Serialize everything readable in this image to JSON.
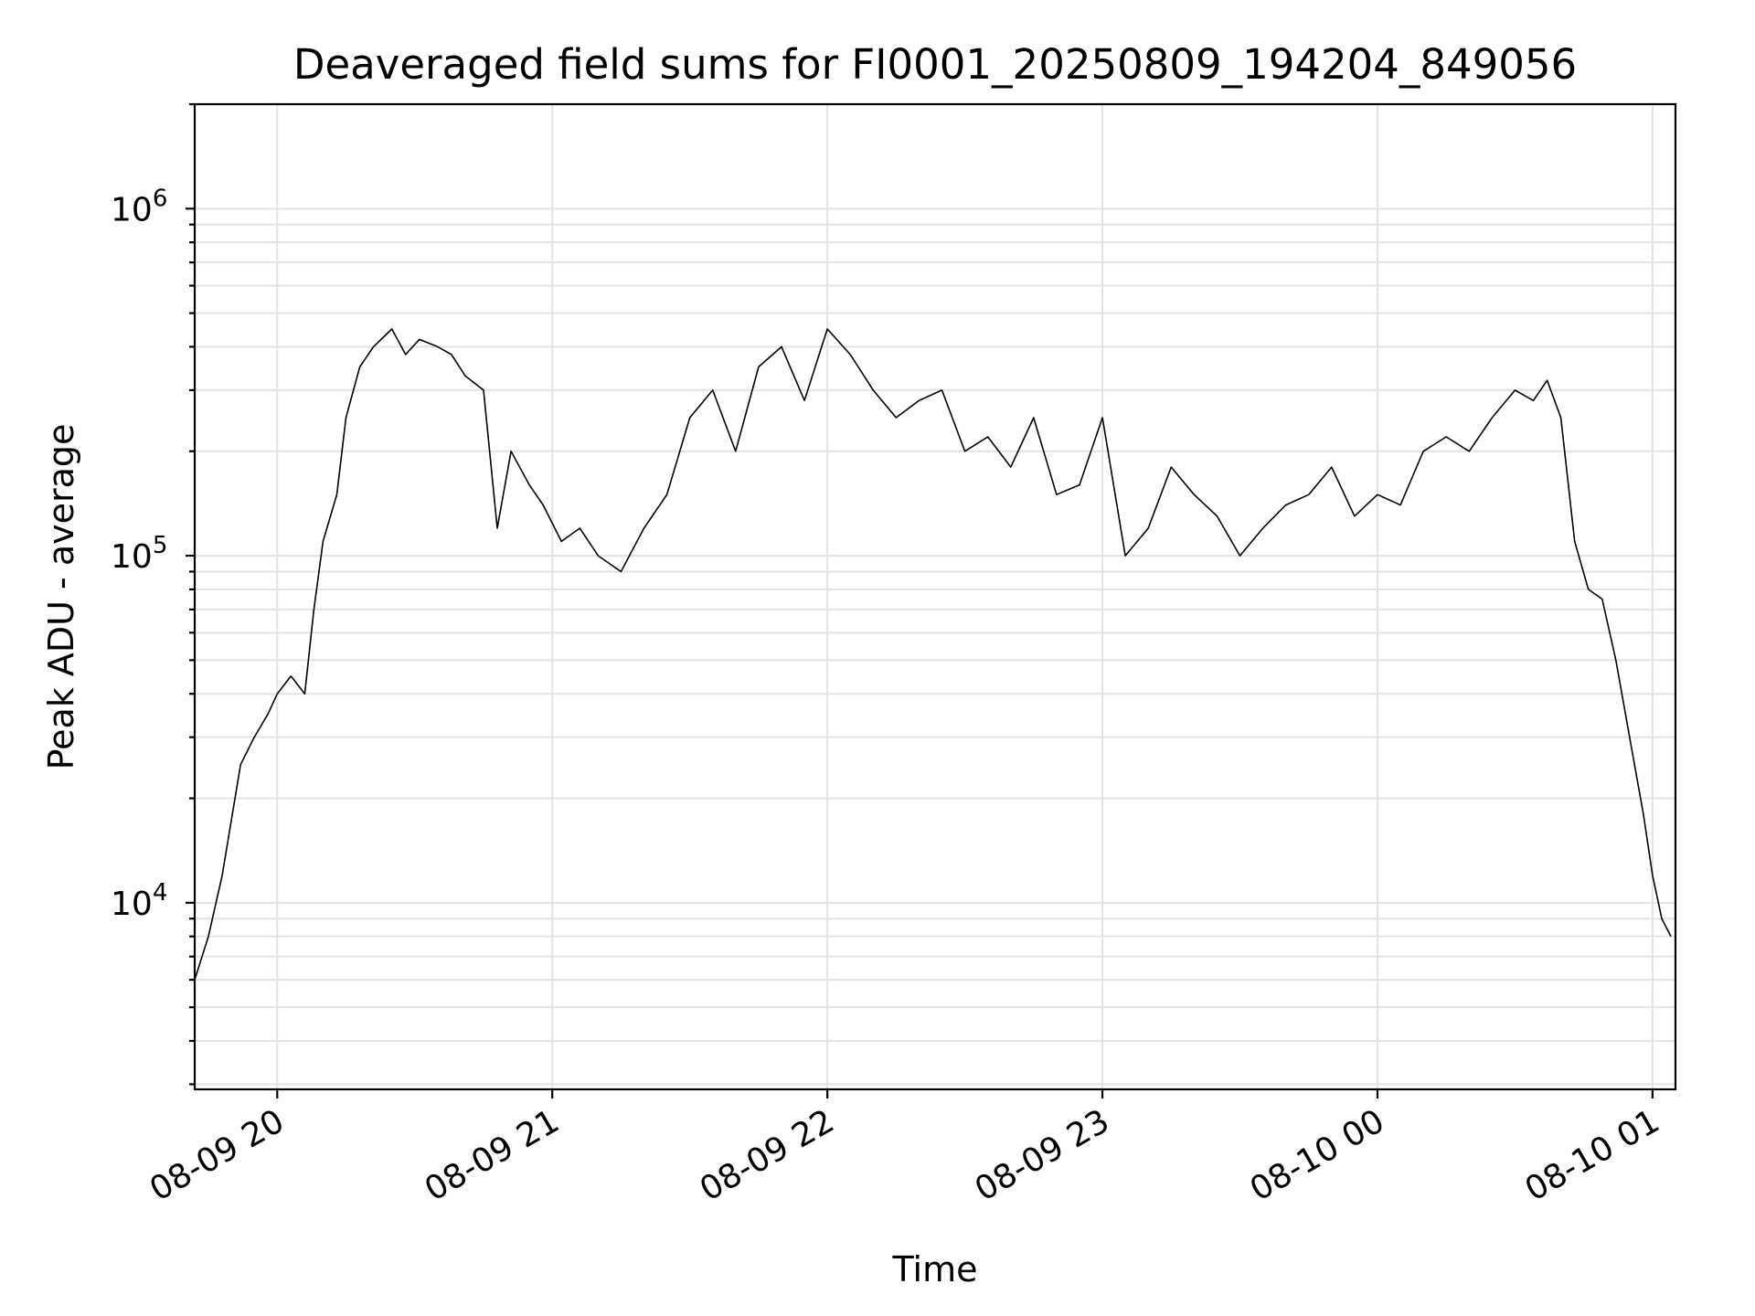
{
  "chart_data": {
    "type": "line",
    "title": "Deaveraged field sums for FI0001_20250809_194204_849056",
    "xlabel": "Time",
    "ylabel": "Peak ADU - average",
    "yscale": "log",
    "ylim": [
      2900,
      2000000
    ],
    "xlim": [
      "2025-08-09 19:42",
      "2025-08-10 01:05"
    ],
    "grid": true,
    "line_color": "#000000",
    "x_ticks": [
      {
        "t": "2025-08-09 20:00",
        "label": "08-09 20"
      },
      {
        "t": "2025-08-09 21:00",
        "label": "08-09 21"
      },
      {
        "t": "2025-08-09 22:00",
        "label": "08-09 22"
      },
      {
        "t": "2025-08-09 23:00",
        "label": "08-09 23"
      },
      {
        "t": "2025-08-10 00:00",
        "label": "08-10 00"
      },
      {
        "t": "2025-08-10 01:00",
        "label": "08-10 01"
      }
    ],
    "y_ticks": [
      {
        "value": 10000,
        "base": "10",
        "exp": "4"
      },
      {
        "value": 100000,
        "base": "10",
        "exp": "5"
      },
      {
        "value": 1000000,
        "base": "10",
        "exp": "6"
      }
    ],
    "series": [
      {
        "x": [
          "2025-08-09 19:42",
          "2025-08-09 19:45",
          "2025-08-09 19:48",
          "2025-08-09 19:52",
          "2025-08-09 19:55",
          "2025-08-09 19:58",
          "2025-08-09 20:00",
          "2025-08-09 20:03",
          "2025-08-09 20:06",
          "2025-08-09 20:08",
          "2025-08-09 20:10",
          "2025-08-09 20:13",
          "2025-08-09 20:15",
          "2025-08-09 20:18",
          "2025-08-09 20:21",
          "2025-08-09 20:25",
          "2025-08-09 20:28",
          "2025-08-09 20:31",
          "2025-08-09 20:35",
          "2025-08-09 20:38",
          "2025-08-09 20:41",
          "2025-08-09 20:45",
          "2025-08-09 20:48",
          "2025-08-09 20:51",
          "2025-08-09 20:55",
          "2025-08-09 20:58",
          "2025-08-09 21:02",
          "2025-08-09 21:06",
          "2025-08-09 21:10",
          "2025-08-09 21:15",
          "2025-08-09 21:20",
          "2025-08-09 21:25",
          "2025-08-09 21:30",
          "2025-08-09 21:35",
          "2025-08-09 21:40",
          "2025-08-09 21:45",
          "2025-08-09 21:50",
          "2025-08-09 21:55",
          "2025-08-09 22:00",
          "2025-08-09 22:05",
          "2025-08-09 22:10",
          "2025-08-09 22:15",
          "2025-08-09 22:20",
          "2025-08-09 22:25",
          "2025-08-09 22:30",
          "2025-08-09 22:35",
          "2025-08-09 22:40",
          "2025-08-09 22:45",
          "2025-08-09 22:50",
          "2025-08-09 22:55",
          "2025-08-09 23:00",
          "2025-08-09 23:05",
          "2025-08-09 23:10",
          "2025-08-09 23:15",
          "2025-08-09 23:20",
          "2025-08-09 23:25",
          "2025-08-09 23:30",
          "2025-08-09 23:35",
          "2025-08-09 23:40",
          "2025-08-09 23:45",
          "2025-08-09 23:50",
          "2025-08-09 23:55",
          "2025-08-10 00:00",
          "2025-08-10 00:05",
          "2025-08-10 00:10",
          "2025-08-10 00:15",
          "2025-08-10 00:20",
          "2025-08-10 00:25",
          "2025-08-10 00:30",
          "2025-08-10 00:34",
          "2025-08-10 00:37",
          "2025-08-10 00:40",
          "2025-08-10 00:43",
          "2025-08-10 00:46",
          "2025-08-10 00:49",
          "2025-08-10 00:52",
          "2025-08-10 00:55",
          "2025-08-10 00:58",
          "2025-08-10 01:00",
          "2025-08-10 01:02",
          "2025-08-10 01:04"
        ],
        "y": [
          6000,
          8000,
          12000,
          25000,
          30000,
          35000,
          40000,
          45000,
          40000,
          70000,
          110000,
          150000,
          250000,
          350000,
          400000,
          450000,
          380000,
          420000,
          400000,
          380000,
          330000,
          300000,
          120000,
          200000,
          160000,
          140000,
          110000,
          120000,
          100000,
          90000,
          120000,
          150000,
          250000,
          300000,
          200000,
          350000,
          400000,
          280000,
          450000,
          380000,
          300000,
          250000,
          280000,
          300000,
          200000,
          220000,
          180000,
          250000,
          150000,
          160000,
          250000,
          100000,
          120000,
          180000,
          150000,
          130000,
          100000,
          120000,
          140000,
          150000,
          180000,
          130000,
          150000,
          140000,
          200000,
          220000,
          200000,
          250000,
          300000,
          280000,
          320000,
          250000,
          110000,
          80000,
          75000,
          50000,
          30000,
          18000,
          12000,
          9000,
          8000
        ]
      }
    ]
  }
}
